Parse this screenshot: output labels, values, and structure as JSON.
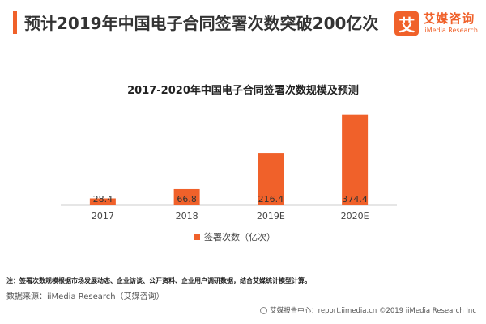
{
  "header": {
    "title": "预计2019年中国电子合同签署次数突破200亿次",
    "logo_mark": "艾",
    "logo_cn": "艾媒咨询",
    "logo_en": "iiMedia Research"
  },
  "chart_data": {
    "type": "bar",
    "title": "2017-2020年中国电子合同签署次数规模及预测",
    "categories": [
      "2017",
      "2018",
      "2019E",
      "2020E"
    ],
    "series": [
      {
        "name": "签署次数（亿次）",
        "values": [
          28.4,
          66.8,
          216.4,
          374.4
        ]
      }
    ],
    "data_labels": [
      "28.4",
      "66.8",
      "216.4",
      "374.4"
    ],
    "ylim": [
      0,
      400
    ],
    "grid": false,
    "legend": "bottom",
    "colors": {
      "bar": "#f0612a",
      "label": "#ffffff",
      "axis": "#cccccc"
    }
  },
  "footnote": "注：签署次数规模根据市场发展动态、企业访谈、公开资料、企业用户调研数据，结合艾媒统计模型计算。",
  "source": "数据来源：iiMedia Research（艾媒咨询）",
  "footer": "艾媒报告中心：report.iimedia.cn   ©2019  iiMedia Research  Inc"
}
